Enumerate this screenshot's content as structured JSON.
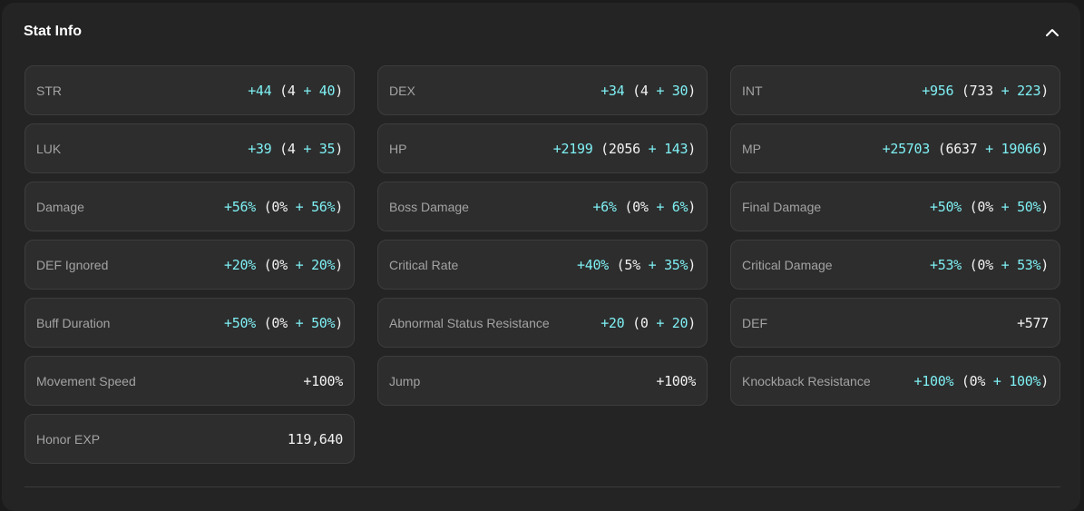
{
  "header": {
    "title": "Stat Info"
  },
  "stats": [
    {
      "label": "STR",
      "total": "+44",
      "base": "4",
      "bonus": "40"
    },
    {
      "label": "DEX",
      "total": "+34",
      "base": "4",
      "bonus": "30"
    },
    {
      "label": "INT",
      "total": "+956",
      "base": "733",
      "bonus": "223"
    },
    {
      "label": "LUK",
      "total": "+39",
      "base": "4",
      "bonus": "35"
    },
    {
      "label": "HP",
      "total": "+2199",
      "base": "2056",
      "bonus": "143"
    },
    {
      "label": "MP",
      "total": "+25703",
      "base": "6637",
      "bonus": "19066"
    },
    {
      "label": "Damage",
      "total": "+56%",
      "base": "0%",
      "bonus": "56%"
    },
    {
      "label": "Boss Damage",
      "total": "+6%",
      "base": "0%",
      "bonus": "6%"
    },
    {
      "label": "Final Damage",
      "total": "+50%",
      "base": "0%",
      "bonus": "50%"
    },
    {
      "label": "DEF Ignored",
      "total": "+20%",
      "base": "0%",
      "bonus": "20%"
    },
    {
      "label": "Critical Rate",
      "total": "+40%",
      "base": "5%",
      "bonus": "35%"
    },
    {
      "label": "Critical Damage",
      "total": "+53%",
      "base": "0%",
      "bonus": "53%"
    },
    {
      "label": "Buff Duration",
      "total": "+50%",
      "base": "0%",
      "bonus": "50%"
    },
    {
      "label": "Abnormal Status Resistance",
      "total": "+20",
      "base": "0",
      "bonus": "20"
    },
    {
      "label": "DEF",
      "value": "+577"
    },
    {
      "label": "Movement Speed",
      "value": "+100%"
    },
    {
      "label": "Jump",
      "value": "+100%"
    },
    {
      "label": "Knockback Resistance",
      "total": "+100%",
      "base": "0%",
      "bonus": "100%"
    },
    {
      "label": "Honor EXP",
      "value": "119,640"
    }
  ],
  "colors": {
    "accent": "#7ff0f4",
    "card_bg": "#2d2d2d",
    "panel_bg": "#242424"
  },
  "icons": {
    "collapse": "chevron-up-icon"
  }
}
